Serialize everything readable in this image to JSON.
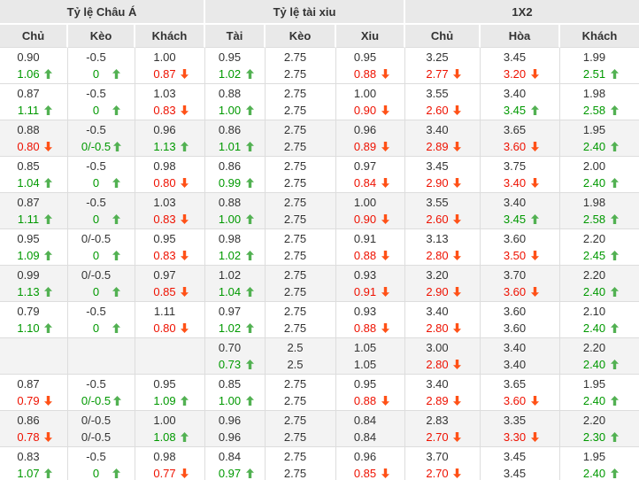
{
  "table": {
    "groups": [
      {
        "label": "Tỷ lệ Châu Á",
        "columns": [
          "Chủ",
          "Kèo",
          "Khách"
        ]
      },
      {
        "label": "Tỷ lệ tài xiu",
        "columns": [
          "Tài",
          "Kèo",
          "Xiu"
        ]
      },
      {
        "label": "1X2",
        "columns": [
          "Chủ",
          "Hòa",
          "Khách"
        ]
      }
    ],
    "colors": {
      "up_text": "#009900",
      "up_arrow": "#52b152",
      "down_text": "#ee1100",
      "down_arrow": "#ff5117",
      "header_bg": "#e9e9e9",
      "header_text": "#333333",
      "body_text": "#333333",
      "border": "#dddddd",
      "shaded_row_bg": "#f3f3f3"
    },
    "rows": [
      {
        "shaded": false,
        "cells": [
          {
            "top": "0.90",
            "bottom": "1.06",
            "trend": "up"
          },
          {
            "top": "-0.5",
            "bottom": "0",
            "trend": "up"
          },
          {
            "top": "1.00",
            "bottom": "0.87",
            "trend": "down"
          },
          {
            "top": "0.95",
            "bottom": "1.02",
            "trend": "up"
          },
          {
            "top": "2.75",
            "bottom": "2.75",
            "trend": "none"
          },
          {
            "top": "0.95",
            "bottom": "0.88",
            "trend": "down"
          },
          {
            "top": "3.25",
            "bottom": "2.77",
            "trend": "down"
          },
          {
            "top": "3.45",
            "bottom": "3.20",
            "trend": "down"
          },
          {
            "top": "1.99",
            "bottom": "2.51",
            "trend": "up"
          }
        ]
      },
      {
        "shaded": false,
        "cells": [
          {
            "top": "0.87",
            "bottom": "1.11",
            "trend": "up"
          },
          {
            "top": "-0.5",
            "bottom": "0",
            "trend": "up"
          },
          {
            "top": "1.03",
            "bottom": "0.83",
            "trend": "down"
          },
          {
            "top": "0.88",
            "bottom": "1.00",
            "trend": "up"
          },
          {
            "top": "2.75",
            "bottom": "2.75",
            "trend": "none"
          },
          {
            "top": "1.00",
            "bottom": "0.90",
            "trend": "down"
          },
          {
            "top": "3.55",
            "bottom": "2.60",
            "trend": "down"
          },
          {
            "top": "3.40",
            "bottom": "3.45",
            "trend": "up"
          },
          {
            "top": "1.98",
            "bottom": "2.58",
            "trend": "up"
          }
        ]
      },
      {
        "shaded": true,
        "cells": [
          {
            "top": "0.88",
            "bottom": "0.80",
            "trend": "down"
          },
          {
            "top": "-0.5",
            "bottom": "0/-0.5",
            "trend": "up"
          },
          {
            "top": "0.96",
            "bottom": "1.13",
            "trend": "up"
          },
          {
            "top": "0.86",
            "bottom": "1.01",
            "trend": "up"
          },
          {
            "top": "2.75",
            "bottom": "2.75",
            "trend": "none"
          },
          {
            "top": "0.96",
            "bottom": "0.89",
            "trend": "down"
          },
          {
            "top": "3.40",
            "bottom": "2.89",
            "trend": "down"
          },
          {
            "top": "3.65",
            "bottom": "3.60",
            "trend": "down"
          },
          {
            "top": "1.95",
            "bottom": "2.40",
            "trend": "up"
          }
        ]
      },
      {
        "shaded": false,
        "cells": [
          {
            "top": "0.85",
            "bottom": "1.04",
            "trend": "up"
          },
          {
            "top": "-0.5",
            "bottom": "0",
            "trend": "up"
          },
          {
            "top": "0.98",
            "bottom": "0.80",
            "trend": "down"
          },
          {
            "top": "0.86",
            "bottom": "0.99",
            "trend": "up"
          },
          {
            "top": "2.75",
            "bottom": "2.75",
            "trend": "none"
          },
          {
            "top": "0.97",
            "bottom": "0.84",
            "trend": "down"
          },
          {
            "top": "3.45",
            "bottom": "2.90",
            "trend": "down"
          },
          {
            "top": "3.75",
            "bottom": "3.40",
            "trend": "down"
          },
          {
            "top": "2.00",
            "bottom": "2.40",
            "trend": "up"
          }
        ]
      },
      {
        "shaded": true,
        "cells": [
          {
            "top": "0.87",
            "bottom": "1.11",
            "trend": "up"
          },
          {
            "top": "-0.5",
            "bottom": "0",
            "trend": "up"
          },
          {
            "top": "1.03",
            "bottom": "0.83",
            "trend": "down"
          },
          {
            "top": "0.88",
            "bottom": "1.00",
            "trend": "up"
          },
          {
            "top": "2.75",
            "bottom": "2.75",
            "trend": "none"
          },
          {
            "top": "1.00",
            "bottom": "0.90",
            "trend": "down"
          },
          {
            "top": "3.55",
            "bottom": "2.60",
            "trend": "down"
          },
          {
            "top": "3.40",
            "bottom": "3.45",
            "trend": "up"
          },
          {
            "top": "1.98",
            "bottom": "2.58",
            "trend": "up"
          }
        ]
      },
      {
        "shaded": false,
        "cells": [
          {
            "top": "0.95",
            "bottom": "1.09",
            "trend": "up"
          },
          {
            "top": "0/-0.5",
            "bottom": "0",
            "trend": "up"
          },
          {
            "top": "0.95",
            "bottom": "0.83",
            "trend": "down"
          },
          {
            "top": "0.98",
            "bottom": "1.02",
            "trend": "up"
          },
          {
            "top": "2.75",
            "bottom": "2.75",
            "trend": "none"
          },
          {
            "top": "0.91",
            "bottom": "0.88",
            "trend": "down"
          },
          {
            "top": "3.13",
            "bottom": "2.80",
            "trend": "down"
          },
          {
            "top": "3.60",
            "bottom": "3.50",
            "trend": "down"
          },
          {
            "top": "2.20",
            "bottom": "2.45",
            "trend": "up"
          }
        ]
      },
      {
        "shaded": true,
        "cells": [
          {
            "top": "0.99",
            "bottom": "1.13",
            "trend": "up"
          },
          {
            "top": "0/-0.5",
            "bottom": "0",
            "trend": "up"
          },
          {
            "top": "0.97",
            "bottom": "0.85",
            "trend": "down"
          },
          {
            "top": "1.02",
            "bottom": "1.04",
            "trend": "up"
          },
          {
            "top": "2.75",
            "bottom": "2.75",
            "trend": "none"
          },
          {
            "top": "0.93",
            "bottom": "0.91",
            "trend": "down"
          },
          {
            "top": "3.20",
            "bottom": "2.90",
            "trend": "down"
          },
          {
            "top": "3.70",
            "bottom": "3.60",
            "trend": "down"
          },
          {
            "top": "2.20",
            "bottom": "2.40",
            "trend": "up"
          }
        ]
      },
      {
        "shaded": false,
        "cells": [
          {
            "top": "0.79",
            "bottom": "1.10",
            "trend": "up"
          },
          {
            "top": "-0.5",
            "bottom": "0",
            "trend": "up"
          },
          {
            "top": "1.11",
            "bottom": "0.80",
            "trend": "down"
          },
          {
            "top": "0.97",
            "bottom": "1.02",
            "trend": "up"
          },
          {
            "top": "2.75",
            "bottom": "2.75",
            "trend": "none"
          },
          {
            "top": "0.93",
            "bottom": "0.88",
            "trend": "down"
          },
          {
            "top": "3.40",
            "bottom": "2.80",
            "trend": "down"
          },
          {
            "top": "3.60",
            "bottom": "3.60",
            "trend": "none"
          },
          {
            "top": "2.10",
            "bottom": "2.40",
            "trend": "up"
          }
        ]
      },
      {
        "shaded": true,
        "cells": [
          {
            "top": "",
            "bottom": "",
            "trend": "none"
          },
          {
            "top": "",
            "bottom": "",
            "trend": "none"
          },
          {
            "top": "",
            "bottom": "",
            "trend": "none"
          },
          {
            "top": "0.70",
            "bottom": "0.73",
            "trend": "up"
          },
          {
            "top": "2.5",
            "bottom": "2.5",
            "trend": "none"
          },
          {
            "top": "1.05",
            "bottom": "1.05",
            "trend": "none"
          },
          {
            "top": "3.00",
            "bottom": "2.80",
            "trend": "down"
          },
          {
            "top": "3.40",
            "bottom": "3.40",
            "trend": "none"
          },
          {
            "top": "2.20",
            "bottom": "2.40",
            "trend": "up"
          }
        ]
      },
      {
        "shaded": false,
        "cells": [
          {
            "top": "0.87",
            "bottom": "0.79",
            "trend": "down"
          },
          {
            "top": "-0.5",
            "bottom": "0/-0.5",
            "trend": "up"
          },
          {
            "top": "0.95",
            "bottom": "1.09",
            "trend": "up"
          },
          {
            "top": "0.85",
            "bottom": "1.00",
            "trend": "up"
          },
          {
            "top": "2.75",
            "bottom": "2.75",
            "trend": "none"
          },
          {
            "top": "0.95",
            "bottom": "0.88",
            "trend": "down"
          },
          {
            "top": "3.40",
            "bottom": "2.89",
            "trend": "down"
          },
          {
            "top": "3.65",
            "bottom": "3.60",
            "trend": "down"
          },
          {
            "top": "1.95",
            "bottom": "2.40",
            "trend": "up"
          }
        ]
      },
      {
        "shaded": true,
        "cells": [
          {
            "top": "0.86",
            "bottom": "0.78",
            "trend": "down"
          },
          {
            "top": "0/-0.5",
            "bottom": "0/-0.5",
            "trend": "none"
          },
          {
            "top": "1.00",
            "bottom": "1.08",
            "trend": "up"
          },
          {
            "top": "0.96",
            "bottom": "0.96",
            "trend": "none"
          },
          {
            "top": "2.75",
            "bottom": "2.75",
            "trend": "none"
          },
          {
            "top": "0.84",
            "bottom": "0.84",
            "trend": "none"
          },
          {
            "top": "2.83",
            "bottom": "2.70",
            "trend": "down"
          },
          {
            "top": "3.35",
            "bottom": "3.30",
            "trend": "down"
          },
          {
            "top": "2.20",
            "bottom": "2.30",
            "trend": "up"
          }
        ]
      },
      {
        "shaded": false,
        "cells": [
          {
            "top": "0.83",
            "bottom": "1.07",
            "trend": "up"
          },
          {
            "top": "-0.5",
            "bottom": "0",
            "trend": "up"
          },
          {
            "top": "0.98",
            "bottom": "0.77",
            "trend": "down"
          },
          {
            "top": "0.84",
            "bottom": "0.97",
            "trend": "up"
          },
          {
            "top": "2.75",
            "bottom": "2.75",
            "trend": "none"
          },
          {
            "top": "0.96",
            "bottom": "0.85",
            "trend": "down"
          },
          {
            "top": "3.70",
            "bottom": "2.70",
            "trend": "down"
          },
          {
            "top": "3.45",
            "bottom": "3.45",
            "trend": "none"
          },
          {
            "top": "1.95",
            "bottom": "2.40",
            "trend": "up"
          }
        ]
      }
    ]
  }
}
